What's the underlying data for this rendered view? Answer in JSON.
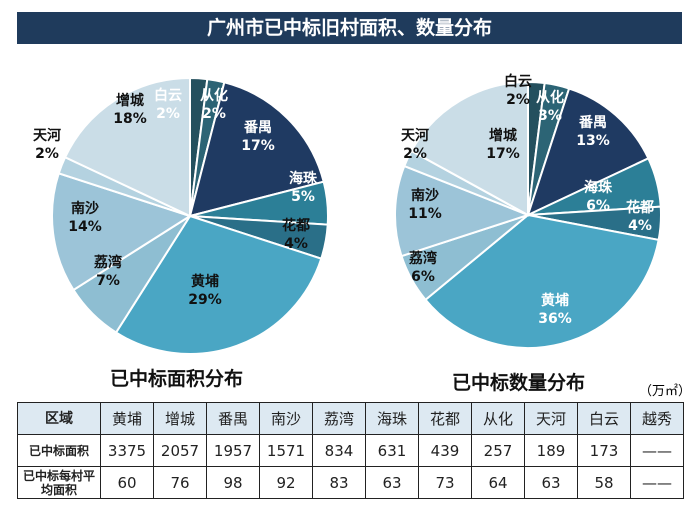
{
  "title": "广州市已中标旧村面积、数量分布",
  "unit": "（万㎡）",
  "colors": [
    "#24505e",
    "#2c6475",
    "#1f3a62",
    "#2c7f97",
    "#2a6f88",
    "#4aa6c4",
    "#8ebed2",
    "#9cc4d8",
    "#b4d2e0",
    "#cadde7"
  ],
  "chart_data": [
    {
      "type": "pie",
      "title": "已中标面积分布",
      "labels": [
        "白云",
        "从化",
        "番禺",
        "海珠",
        "花都",
        "黄埔",
        "荔湾",
        "南沙",
        "天河",
        "增城"
      ],
      "values": [
        2,
        2,
        17,
        5,
        4,
        29,
        7,
        14,
        2,
        18
      ]
    },
    {
      "type": "pie",
      "title": "已中标数量分布",
      "labels": [
        "白云",
        "从化",
        "番禺",
        "海珠",
        "花都",
        "黄埔",
        "荔湾",
        "南沙",
        "天河",
        "增城"
      ],
      "values": [
        2,
        3,
        13,
        6,
        4,
        36,
        6,
        11,
        2,
        17
      ]
    }
  ],
  "table": {
    "header": [
      "区域",
      "黄埔",
      "增城",
      "番禺",
      "南沙",
      "荔湾",
      "海珠",
      "花都",
      "从化",
      "天河",
      "白云",
      "越秀"
    ],
    "rows": [
      [
        "已中标面积",
        "3375",
        "2057",
        "1957",
        "1571",
        "834",
        "631",
        "439",
        "257",
        "189",
        "173",
        "——"
      ],
      [
        "已中标每村平均面积",
        "60",
        "76",
        "98",
        "92",
        "83",
        "63",
        "73",
        "64",
        "63",
        "58",
        "——"
      ]
    ]
  }
}
